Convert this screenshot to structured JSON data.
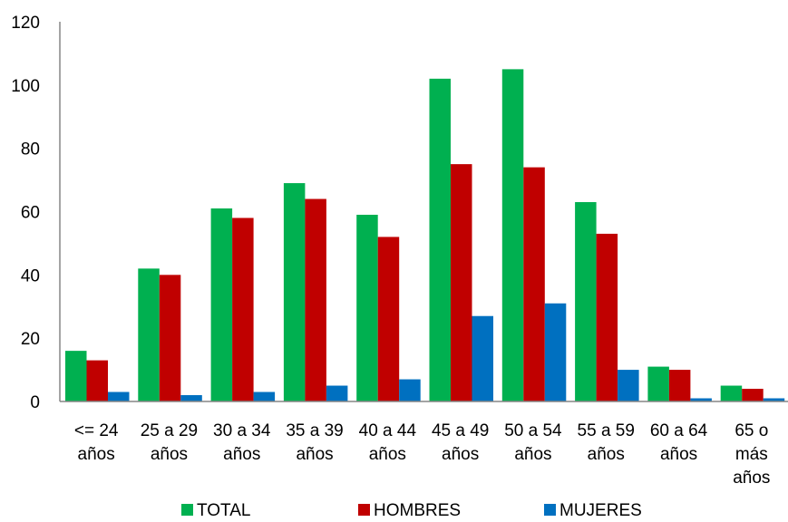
{
  "chart_data": {
    "type": "bar",
    "categories": [
      [
        "<= 24",
        "años"
      ],
      [
        "25 a 29",
        "años"
      ],
      [
        "30 a 34",
        "años"
      ],
      [
        "35 a 39",
        "años"
      ],
      [
        "40 a 44",
        "años"
      ],
      [
        "45 a 49",
        "años"
      ],
      [
        "50 a 54",
        "años"
      ],
      [
        "55 a 59",
        "años"
      ],
      [
        "60 a 64",
        "años"
      ],
      [
        "65 o",
        "más",
        "años"
      ]
    ],
    "series": [
      {
        "name": "TOTAL",
        "color": "#00B050",
        "values": [
          16,
          42,
          61,
          69,
          59,
          102,
          105,
          63,
          11,
          5
        ]
      },
      {
        "name": "HOMBRES",
        "color": "#C00000",
        "values": [
          13,
          40,
          58,
          64,
          52,
          75,
          74,
          53,
          10,
          4
        ]
      },
      {
        "name": "MUJERES",
        "color": "#0070C0",
        "values": [
          3,
          2,
          3,
          5,
          7,
          27,
          31,
          10,
          1,
          1
        ]
      }
    ],
    "ylim": [
      0,
      120
    ],
    "yticks": [
      0,
      20,
      40,
      60,
      80,
      100,
      120
    ],
    "grid": false,
    "legend": "bottom"
  }
}
